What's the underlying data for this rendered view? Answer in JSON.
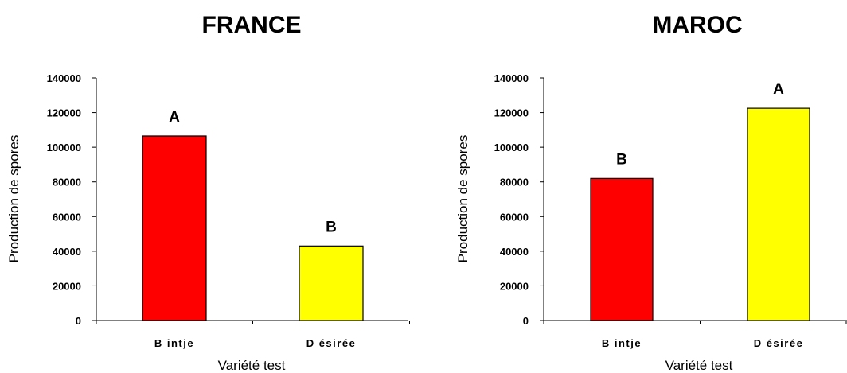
{
  "chart_data": [
    {
      "type": "bar",
      "title": "FRANCE",
      "xlabel": "Variété test",
      "ylabel": "Production de spores",
      "categories": [
        "Bintje",
        "Désirée"
      ],
      "category_labels": [
        "B intje",
        "D ésirée"
      ],
      "values": [
        106500,
        43000
      ],
      "data_labels": [
        "A",
        "B"
      ],
      "bar_colors": [
        "#ff0000",
        "#ffff00"
      ],
      "ylim": [
        0,
        140000
      ],
      "yticks": [
        0,
        20000,
        40000,
        60000,
        80000,
        100000,
        120000,
        140000
      ],
      "ytick_labels": [
        "0",
        "20000",
        "40000",
        "60000",
        "80000",
        "100000",
        "120000",
        "140000"
      ],
      "grid": false
    },
    {
      "type": "bar",
      "title": "MAROC",
      "xlabel": "Variété test",
      "ylabel": "Production de spores",
      "categories": [
        "Bintje",
        "Désirée"
      ],
      "category_labels": [
        "B intje",
        "D ésirée"
      ],
      "values": [
        82000,
        122500
      ],
      "data_labels": [
        "B",
        "A"
      ],
      "bar_colors": [
        "#ff0000",
        "#ffff00"
      ],
      "ylim": [
        0,
        140000
      ],
      "yticks": [
        0,
        20000,
        40000,
        60000,
        80000,
        100000,
        120000,
        140000
      ],
      "ytick_labels": [
        "0",
        "20000",
        "40000",
        "60000",
        "80000",
        "100000",
        "120000",
        "140000"
      ],
      "grid": false
    }
  ]
}
